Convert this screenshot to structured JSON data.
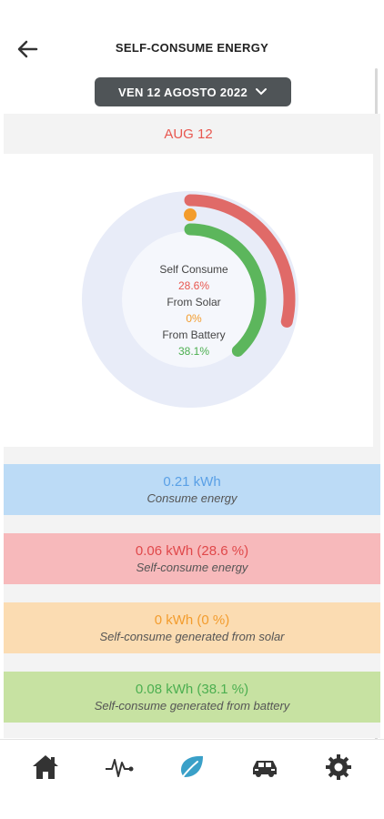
{
  "header": {
    "title": "SELF-CONSUME ENERGY"
  },
  "date_selector": {
    "label": "VEN 12 AGOSTO 2022"
  },
  "day_label": "AUG 12",
  "chart_center": {
    "self_label": "Self Consume",
    "self_value": "28.6%",
    "solar_label": "From Solar",
    "solar_value": "0%",
    "battery_label": "From Battery",
    "battery_value": "38.1%"
  },
  "chart_data": {
    "type": "radial-bar",
    "series": [
      {
        "name": "Self Consume",
        "percent": 28.6,
        "color": "#e06a68"
      },
      {
        "name": "From Solar",
        "percent": 0,
        "color": "#f39c2d"
      },
      {
        "name": "From Battery",
        "percent": 38.1,
        "color": "#5cb65c"
      }
    ]
  },
  "stats": [
    {
      "value": "0.21 kWh",
      "desc": "Consume energy"
    },
    {
      "value": "0.06 kWh (28.6 %)",
      "desc": "Self-consume energy"
    },
    {
      "value": "0 kWh (0 %)",
      "desc": "Self-consume generated from solar"
    },
    {
      "value": "0.08 kWh (38.1 %)",
      "desc": "Self-consume generated from battery"
    }
  ],
  "colors": {
    "accent": "#3aa0c8",
    "nav_inactive": "#333333"
  },
  "nav": {
    "icons": [
      "home-icon",
      "activity-icon",
      "leaf-icon",
      "car-icon",
      "gear-icon"
    ],
    "active": "leaf-icon"
  }
}
